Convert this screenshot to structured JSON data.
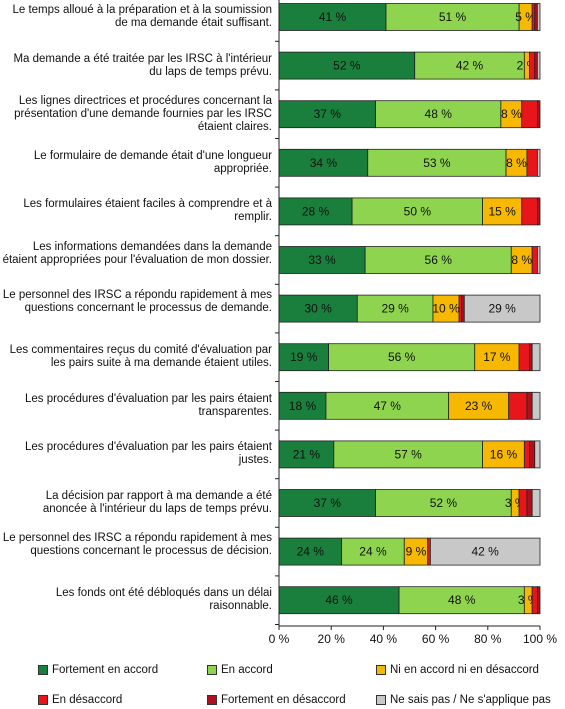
{
  "chart_data": {
    "type": "bar",
    "orientation": "horizontal",
    "stacked": true,
    "categories": [
      "Le temps alloué à la préparation et à la soumission de ma demande était suffisant.",
      "Ma demande a été traitée par les IRSC à l'intérieur du laps de temps prévu.",
      "Les lignes directrices et procédures concernant la présentation d'une demande fournies par les IRSC étaient claires.",
      "Le formulaire de demande était d'une longueur appropriée.",
      "Les formulaires étaient faciles à comprendre et à remplir.",
      "Les informations demandées dans la demande étaient appropriées pour l'évaluation de mon dossier.",
      "Le personnel des IRSC a répondu rapidement à mes questions concernant le processus de demande.",
      "Les commentaires reçus du comité d'évaluation par les pairs suite à ma demande étaient utiles.",
      "Les procédures d'évaluation par les pairs étaient transparentes.",
      "Les procédures d'évaluation par les pairs étaient justes.",
      "La décision par rapport à ma demande a été anoncée à l'intérieur du laps de temps prévu.",
      "Le personnel des IRSC a répondu rapidement à mes questions concernant le processus de décision.",
      "Les fonds ont été débloqués dans un délai raisonnable."
    ],
    "series": [
      {
        "name": "Fortement en accord",
        "color": "#1a7f3c",
        "values": [
          41,
          52,
          37,
          34,
          28,
          33,
          30,
          19,
          18,
          21,
          37,
          24,
          46
        ],
        "labels": [
          "41 %",
          "52 %",
          "37 %",
          "34 %",
          "28 %",
          "33 %",
          "30 %",
          "19 %",
          "18 %",
          "21 %",
          "37 %",
          "24 %",
          "46 %"
        ]
      },
      {
        "name": "En accord",
        "color": "#8fd44e",
        "values": [
          51,
          42,
          48,
          53,
          50,
          56,
          29,
          56,
          47,
          57,
          52,
          24,
          48
        ],
        "labels": [
          "51 %",
          "42 %",
          "48 %",
          "53 %",
          "50 %",
          "56 %",
          "29 %",
          "56 %",
          "47 %",
          "57 %",
          "52 %",
          "24 %",
          "48 %"
        ]
      },
      {
        "name": "Ni en accord ni en désaccord",
        "color": "#f6b800",
        "values": [
          5,
          2,
          8,
          8,
          15,
          8,
          10,
          17,
          23,
          16,
          3,
          9,
          3
        ],
        "labels": [
          "5 %",
          "2 %",
          "8 %",
          "8 %",
          "15 %",
          "8 %",
          "10 %",
          "17 %",
          "23 %",
          "16 %",
          "3 %",
          "9 %",
          "3 %"
        ]
      },
      {
        "name": "En désaccord",
        "color": "#e8161b",
        "values": [
          1,
          2,
          6,
          4,
          6,
          2,
          1,
          4,
          7,
          2,
          3,
          1,
          2
        ],
        "labels": [
          "",
          "",
          "",
          "",
          "",
          "",
          "",
          "",
          "",
          "",
          "",
          "",
          ""
        ]
      },
      {
        "name": "Fortement en désaccord",
        "color": "#b0101c",
        "values": [
          1,
          1,
          1,
          0,
          1,
          0,
          1,
          1,
          2,
          2,
          2,
          0,
          1
        ],
        "labels": [
          "",
          "",
          "",
          "",
          "",
          "",
          "",
          "",
          "",
          "",
          "",
          "",
          ""
        ]
      },
      {
        "name": "Ne sais pas / Ne s'applique pas",
        "color": "#c8c8c8",
        "values": [
          1,
          1,
          0,
          1,
          0,
          1,
          29,
          3,
          3,
          2,
          3,
          42,
          0
        ],
        "labels": [
          "",
          "",
          "",
          "",
          "",
          "",
          "29 %",
          "",
          "",
          "",
          "",
          "42 %",
          ""
        ]
      }
    ],
    "xlim": [
      0,
      100
    ],
    "xticks": [
      "0 %",
      "20 %",
      "40 %",
      "60 %",
      "80 %",
      "100 %"
    ],
    "grid": false,
    "legend_position": "bottom"
  }
}
